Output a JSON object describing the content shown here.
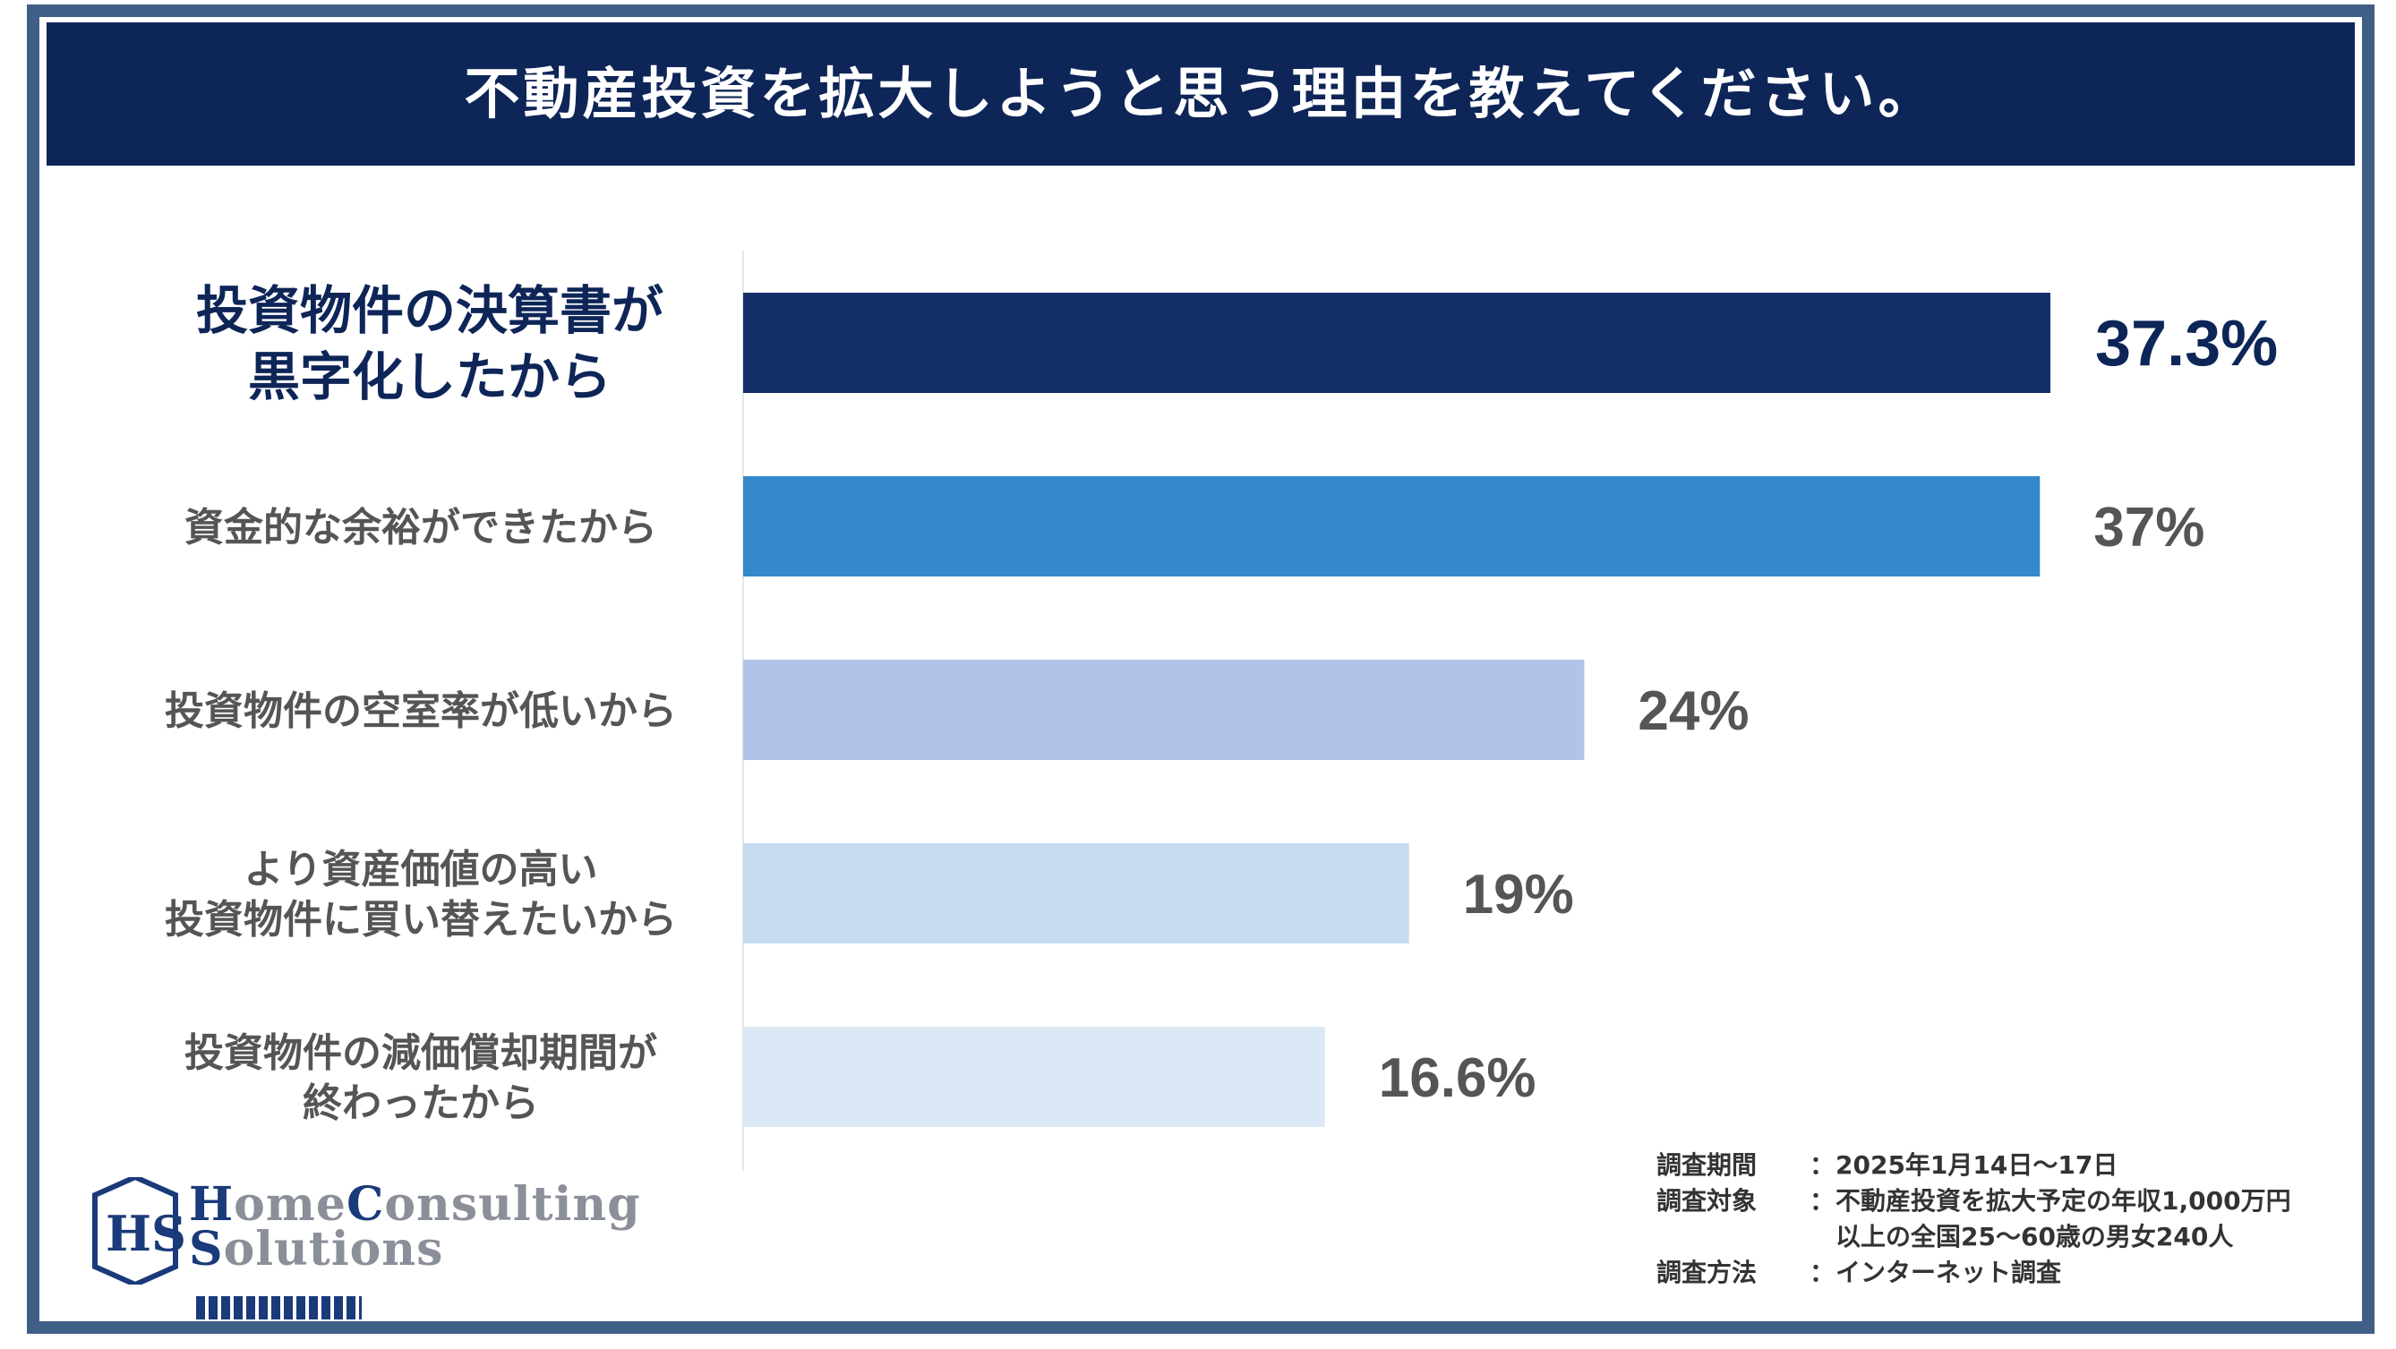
{
  "title": "不動産投資を拡大しようと思う理由を教えてください。",
  "chart_data": {
    "type": "bar",
    "orientation": "horizontal",
    "title": "不動産投資を拡大しようと思う理由を教えてください。",
    "categories": [
      [
        "投資物件の決算書が",
        "黒字化したから"
      ],
      [
        "資金的な余裕ができたから"
      ],
      [
        "投資物件の空室率が低いから"
      ],
      [
        "より資産価値の高い",
        "投資物件に買い替えたいから"
      ],
      [
        "投資物件の減価償却期間が",
        "終わったから"
      ]
    ],
    "values": [
      37.3,
      37,
      24,
      19,
      16.6
    ],
    "value_labels": [
      "37.3%",
      "37%",
      "24%",
      "19%",
      "16.6%"
    ],
    "colors": [
      "#14306b",
      "#3389cc",
      "#afc4e6",
      "#c4dbf0",
      "#dbe8f5"
    ],
    "highlight_index": 0,
    "xlim": [
      0,
      40
    ],
    "xlabel": "",
    "ylabel": "",
    "grid": false
  },
  "survey": {
    "rows": [
      {
        "key": "調査期間",
        "value": "2025年1月14日～17日"
      },
      {
        "key": "調査対象",
        "value": "不動産投資を拡大予定の年収1,000万円"
      },
      {
        "key": "",
        "value": "以上の全国25～60歳の男女240人"
      },
      {
        "key": "調査方法",
        "value": "インターネット調査"
      }
    ],
    "colon": "："
  },
  "logo": {
    "line1_cap": "H",
    "line1_rest": "ome",
    "line2_cap": "C",
    "line2_rest": "onsulting",
    "line3_cap": "S",
    "line3_rest": "olutions",
    "mark": "HS"
  }
}
